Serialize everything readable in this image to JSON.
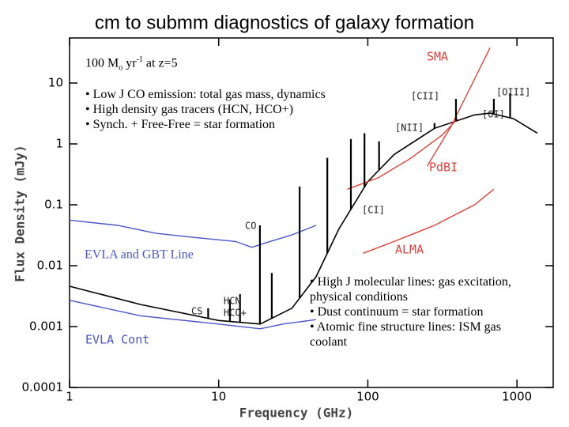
{
  "chart_data": {
    "type": "line",
    "title": "cm to submm diagnostics of galaxy formation",
    "xlabel": "Frequency (GHz)",
    "ylabel": "Flux Density (mJy)",
    "xscale": "log",
    "yscale": "log",
    "xlim": [
      1,
      1750
    ],
    "ylim": [
      0.0001,
      55
    ],
    "xticks": [
      1,
      10,
      100,
      1000
    ],
    "yticks": [
      0.0001,
      0.001,
      0.01,
      0.1,
      1,
      10
    ],
    "grid": false,
    "series": [
      {
        "color": "#000000",
        "x": [
          1,
          3,
          10,
          19,
          31,
          45,
          64,
          100,
          150,
          280,
          520,
          660,
          950,
          1370
        ],
        "values": [
          0.0046,
          0.0023,
          0.00126,
          0.0011,
          0.002,
          0.0066,
          0.04,
          0.24,
          0.67,
          1.8,
          3.0,
          3.2,
          2.6,
          1.5
        ]
      },
      {
        "name": "EVLA and GBT Line",
        "color": "#4a55c8",
        "x": [
          1,
          2.1,
          3.8,
          7,
          13,
          16.7,
          21,
          31,
          45
        ],
        "values": [
          0.056,
          0.046,
          0.034,
          0.029,
          0.025,
          0.02,
          0.024,
          0.032,
          0.046
        ]
      },
      {
        "name": "EVLA Cont",
        "color": "#4a55c8",
        "x": [
          1,
          3,
          10,
          19,
          27,
          45
        ],
        "values": [
          0.0027,
          0.0015,
          0.0011,
          0.00092,
          0.0011,
          0.0013
        ]
      },
      {
        "name": "SMA",
        "color": "#e0403a",
        "x": [
          250,
          360,
          520,
          660
        ],
        "values": [
          0.43,
          1.9,
          11.6,
          38
        ]
      },
      {
        "name": "PdBI",
        "color": "#e0403a",
        "x": [
          73,
          118,
          194,
          315,
          400
        ],
        "values": [
          0.18,
          0.28,
          0.58,
          1.4,
          2.6
        ]
      },
      {
        "name": "ALMA",
        "color": "#e0403a",
        "x": [
          93,
          150,
          280,
          520,
          700
        ],
        "values": [
          0.016,
          0.025,
          0.046,
          0.1,
          0.18
        ]
      }
    ],
    "lines": {
      "color": "#000000",
      "x": [
        8.5,
        11.9,
        13.9,
        18.9,
        22.7,
        34.9,
        53.5,
        77,
        95,
        119,
        280,
        390,
        700,
        900
      ],
      "values": [
        0.002,
        0.0028,
        0.0034,
        0.046,
        0.0076,
        0.2,
        0.59,
        1.2,
        1.5,
        1.1,
        2.2,
        5.5,
        5.5,
        6.8
      ]
    },
    "annotations": [
      "CO",
      "CS",
      "HCN",
      "HCO+",
      "[CII]",
      "[OIII]",
      "[OI]",
      "[NII]",
      "[CI]"
    ]
  },
  "textbox_1": {
    "rate": [
      "100 M",
      "o",
      " yr",
      "-1",
      " at z=5"
    ],
    "bullets": [
      "• Low J CO emission: total gas mass, dynamics",
      "• High density gas tracers (HCN, HCO+)",
      "• Synch. + Free-Free = star formation"
    ]
  },
  "textbox_2": {
    "bullets": [
      "• High J molecular lines: gas excitation, physical conditions",
      "• Dust continuum = star formation",
      "• Atomic fine structure lines: ISM gas coolant"
    ]
  }
}
